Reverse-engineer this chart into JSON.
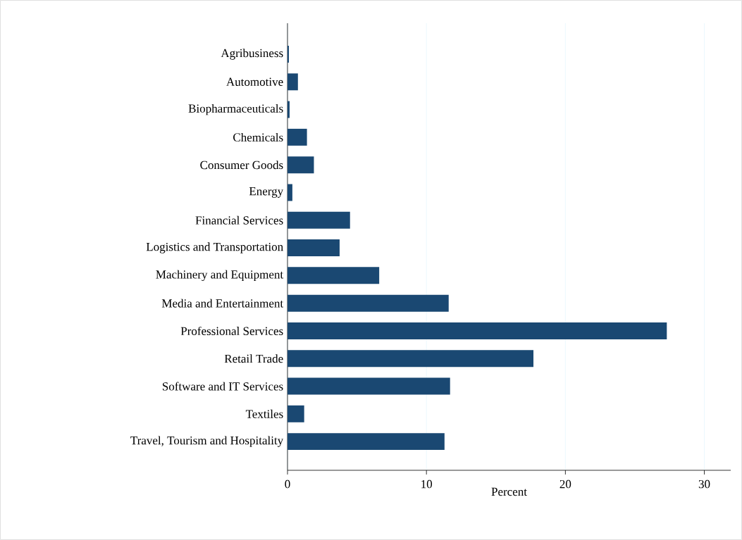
{
  "chart_data": {
    "type": "bar",
    "orientation": "horizontal",
    "xlabel": "Percent",
    "categories": [
      "Agribusiness",
      "Automotive",
      "Biopharmaceuticals",
      "Chemicals",
      "Consumer Goods",
      "Energy",
      "Financial Services",
      "Logistics and Transportation",
      "Machinery and Equipment",
      "Media and Entertainment",
      "Professional Services",
      "Retail Trade",
      "Software and IT Services",
      "Textiles",
      "Travel, Tourism and Hospitality"
    ],
    "values": [
      0.1,
      0.75,
      0.15,
      1.4,
      1.9,
      0.35,
      4.5,
      3.75,
      6.6,
      11.6,
      27.3,
      17.7,
      11.7,
      1.2,
      11.3
    ],
    "color": "#1a4872",
    "xlim": [
      0,
      31.9
    ],
    "xticks": [
      0,
      10,
      20,
      30
    ],
    "grid": "x"
  }
}
